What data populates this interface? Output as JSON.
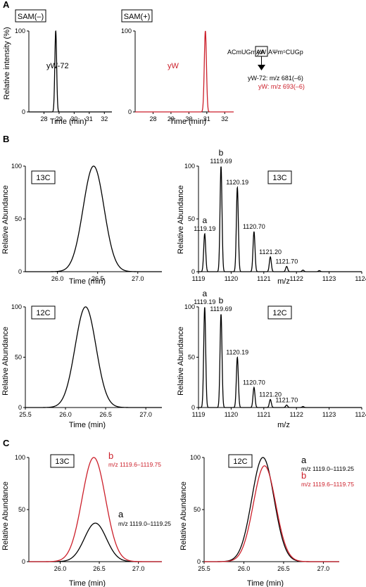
{
  "colors": {
    "black": "#000000",
    "red": "#cc1f2a"
  },
  "panel_letters": {
    "A": "A",
    "B": "B",
    "C": "C"
  },
  "panelA": {
    "left_box": "SAM(–)",
    "right_box": "SAM(+)",
    "left_peak_label": "yW-72",
    "right_peak_label": "yW",
    "ylabel": "Relative intensity (%)",
    "xlabel": "Time (min)",
    "seq_left": "ACmUGmAA",
    "seq_box": "yW",
    "seq_right": "AΨm⁵CUGp",
    "mass_black": "yW-72: m/z 681(–6)",
    "mass_red": "yW: m/z 693(–6)"
  },
  "panelB": {
    "box_13c": "13C",
    "box_12c": "12C",
    "ylabel": "Relative Abundance",
    "xlabel_time": "Time (min)",
    "xlabel_mz": "m/z",
    "label_a": "a",
    "label_b": "b"
  },
  "panelC": {
    "box_13c": "13C",
    "box_12c": "12C",
    "ylabel": "Relative Abundance",
    "xlabel": "Time (min)",
    "label_a": "a",
    "label_b": "b",
    "range_a": "m/z 1119.0–1119.25",
    "range_b": "m/z 1119.6–1119.75"
  },
  "chart_data": [
    {
      "id": "A-left",
      "type": "line",
      "xlim": [
        27,
        32.5
      ],
      "ylim": [
        0,
        100
      ],
      "xticks": [
        28,
        29,
        30,
        31,
        32
      ],
      "yticks": [
        0,
        100
      ],
      "series": [
        {
          "color": "black",
          "peaks": [
            {
              "center": 28.78,
              "height": 100,
              "width": 0.06
            }
          ]
        }
      ]
    },
    {
      "id": "A-right",
      "type": "line",
      "xlim": [
        27,
        32.5
      ],
      "ylim": [
        0,
        100
      ],
      "xticks": [
        28,
        29,
        30,
        31,
        32
      ],
      "yticks": [
        0,
        100
      ],
      "series": [
        {
          "color": "red",
          "peaks": [
            {
              "center": 30.92,
              "height": 100,
              "width": 0.06
            }
          ]
        }
      ]
    },
    {
      "id": "B-13C-chrom",
      "type": "line",
      "xlim": [
        25.6,
        27.3
      ],
      "ylim": [
        0,
        100
      ],
      "xticks": [
        26.0,
        26.5,
        27.0
      ],
      "yticks": [
        0,
        50,
        100
      ],
      "series": [
        {
          "color": "black",
          "peaks": [
            {
              "center": 26.45,
              "height": 100,
              "width": 0.13
            }
          ]
        }
      ]
    },
    {
      "id": "B-13C-ms",
      "type": "line",
      "xlim": [
        1119,
        1124
      ],
      "ylim": [
        0,
        100
      ],
      "xticks": [
        1119,
        1120,
        1121,
        1122,
        1123,
        1124
      ],
      "yticks": [
        0,
        50,
        100
      ],
      "series": [
        {
          "color": "black",
          "peaks": [
            {
              "center": 1119.19,
              "height": 36,
              "width": 0.03
            },
            {
              "center": 1119.69,
              "height": 100,
              "width": 0.03
            },
            {
              "center": 1120.19,
              "height": 80,
              "width": 0.03
            },
            {
              "center": 1120.7,
              "height": 38,
              "width": 0.03
            },
            {
              "center": 1121.2,
              "height": 14,
              "width": 0.03
            },
            {
              "center": 1121.7,
              "height": 5,
              "width": 0.03
            },
            {
              "center": 1122.2,
              "height": 1.5,
              "width": 0.03
            },
            {
              "center": 1122.7,
              "height": 1,
              "width": 0.03
            }
          ]
        }
      ],
      "peak_labels": [
        {
          "x": 1119.19,
          "text": "1119.19",
          "letter": "a"
        },
        {
          "x": 1119.69,
          "text": "1119.69",
          "letter": "b"
        },
        {
          "x": 1120.19,
          "text": "1120.19"
        },
        {
          "x": 1120.7,
          "text": "1120.70"
        },
        {
          "x": 1121.2,
          "text": "1121.20"
        },
        {
          "x": 1121.7,
          "text": "1121.70"
        }
      ]
    },
    {
      "id": "B-12C-chrom",
      "type": "line",
      "xlim": [
        25.5,
        27.2
      ],
      "ylim": [
        0,
        100
      ],
      "xticks": [
        25.5,
        26.0,
        26.5,
        27.0
      ],
      "yticks": [
        0,
        50,
        100
      ],
      "series": [
        {
          "color": "black",
          "peaks": [
            {
              "center": 26.25,
              "height": 100,
              "width": 0.13
            }
          ]
        }
      ]
    },
    {
      "id": "B-12C-ms",
      "type": "line",
      "xlim": [
        1119,
        1124
      ],
      "ylim": [
        0,
        100
      ],
      "xticks": [
        1119,
        1120,
        1121,
        1122,
        1123,
        1124
      ],
      "yticks": [
        0,
        50,
        100
      ],
      "series": [
        {
          "color": "black",
          "peaks": [
            {
              "center": 1119.19,
              "height": 100,
              "width": 0.03
            },
            {
              "center": 1119.69,
              "height": 93,
              "width": 0.03
            },
            {
              "center": 1120.19,
              "height": 50,
              "width": 0.03
            },
            {
              "center": 1120.7,
              "height": 20,
              "width": 0.03
            },
            {
              "center": 1121.2,
              "height": 8,
              "width": 0.03
            },
            {
              "center": 1121.7,
              "height": 2.5,
              "width": 0.03
            },
            {
              "center": 1122.2,
              "height": 1,
              "width": 0.03
            }
          ]
        }
      ],
      "peak_labels": [
        {
          "x": 1119.19,
          "text": "1119.19",
          "letter": "a"
        },
        {
          "x": 1119.69,
          "text": "1119.69",
          "letter": "b"
        },
        {
          "x": 1120.19,
          "text": "1120.19"
        },
        {
          "x": 1120.7,
          "text": "1120.70"
        },
        {
          "x": 1121.2,
          "text": "1121.20"
        },
        {
          "x": 1121.7,
          "text": "1121.70"
        }
      ]
    },
    {
      "id": "C-13C",
      "type": "line",
      "xlim": [
        25.6,
        27.3
      ],
      "ylim": [
        0,
        100
      ],
      "xticks": [
        26.0,
        26.5,
        27.0
      ],
      "yticks": [
        0,
        50,
        100
      ],
      "series": [
        {
          "name": "a",
          "color": "black",
          "peaks": [
            {
              "center": 26.45,
              "height": 37,
              "width": 0.14
            }
          ]
        },
        {
          "name": "b",
          "color": "red",
          "peaks": [
            {
              "center": 26.43,
              "height": 100,
              "width": 0.15
            }
          ]
        }
      ]
    },
    {
      "id": "C-12C",
      "type": "line",
      "xlim": [
        25.5,
        27.2
      ],
      "ylim": [
        0,
        100
      ],
      "xticks": [
        25.5,
        26.0,
        26.5,
        27.0
      ],
      "yticks": [
        0,
        50,
        100
      ],
      "series": [
        {
          "name": "a",
          "color": "black",
          "peaks": [
            {
              "center": 26.24,
              "height": 100,
              "width": 0.14
            }
          ]
        },
        {
          "name": "b",
          "color": "red",
          "peaks": [
            {
              "center": 26.26,
              "height": 92,
              "width": 0.14
            }
          ]
        }
      ]
    }
  ]
}
